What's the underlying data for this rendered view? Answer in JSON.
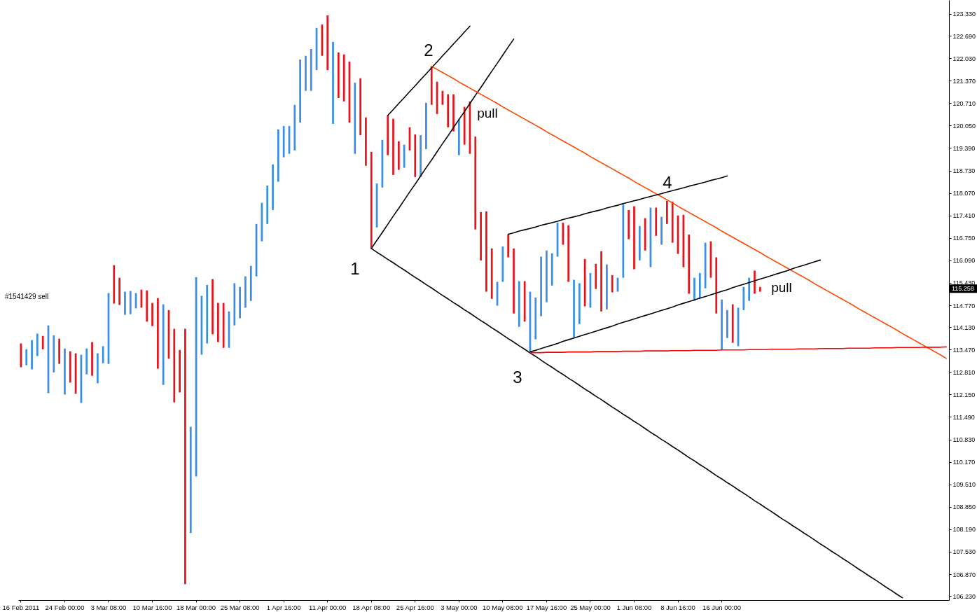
{
  "chart_data": {
    "type": "bar",
    "ylim": [
      106.11,
      123.74
    ],
    "yticks": [
      {
        "value": 123.33,
        "label": "123.330"
      },
      {
        "value": 122.69,
        "label": "122.690"
      },
      {
        "value": 122.03,
        "label": "122.030"
      },
      {
        "value": 121.37,
        "label": "121.370"
      },
      {
        "value": 120.71,
        "label": "120.710"
      },
      {
        "value": 120.05,
        "label": "120.050"
      },
      {
        "value": 119.39,
        "label": "119.390"
      },
      {
        "value": 118.73,
        "label": "118.730"
      },
      {
        "value": 118.07,
        "label": "118.070"
      },
      {
        "value": 117.41,
        "label": "117.410"
      },
      {
        "value": 116.75,
        "label": "116.750"
      },
      {
        "value": 116.09,
        "label": "116.090"
      },
      {
        "value": 115.43,
        "label": "115.430"
      },
      {
        "value": 114.77,
        "label": "114.770"
      },
      {
        "value": 114.13,
        "label": "114.130"
      },
      {
        "value": 113.47,
        "label": "113.470"
      },
      {
        "value": 112.81,
        "label": "112.810"
      },
      {
        "value": 112.15,
        "label": "112.150"
      },
      {
        "value": 111.49,
        "label": "111.490"
      },
      {
        "value": 110.83,
        "label": "110.830"
      },
      {
        "value": 110.17,
        "label": "110.170"
      },
      {
        "value": 109.51,
        "label": "109.510"
      },
      {
        "value": 108.85,
        "label": "108.850"
      },
      {
        "value": 108.19,
        "label": "108.190"
      },
      {
        "value": 107.53,
        "label": "107.530"
      },
      {
        "value": 106.87,
        "label": "106.870"
      },
      {
        "value": 106.23,
        "label": "106.230"
      }
    ],
    "categories": [
      "16 Feb 2011",
      null,
      null,
      null,
      null,
      null,
      null,
      null,
      "24 Feb 00:00",
      null,
      null,
      null,
      null,
      null,
      null,
      null,
      "3 Mar 08:00",
      null,
      null,
      null,
      null,
      null,
      null,
      null,
      "10 Mar 16:00",
      null,
      null,
      null,
      null,
      null,
      null,
      null,
      "18 Mar 00:00",
      null,
      null,
      null,
      null,
      null,
      null,
      null,
      "25 Mar 08:00",
      null,
      null,
      null,
      null,
      null,
      null,
      null,
      "1 Apr 16:00",
      null,
      null,
      null,
      null,
      null,
      null,
      null,
      "11 Apr 00:00",
      null,
      null,
      null,
      null,
      null,
      null,
      null,
      "18 Apr 08:00",
      null,
      null,
      null,
      null,
      null,
      null,
      null,
      "25 Apr 16:00",
      null,
      null,
      null,
      null,
      null,
      null,
      null,
      "3 May 00:00",
      null,
      null,
      null,
      null,
      null,
      null,
      null,
      "10 May 08:00",
      null,
      null,
      null,
      null,
      null,
      null,
      null,
      "17 May 16:00",
      null,
      null,
      null,
      null,
      null,
      null,
      null,
      "25 May 00:00",
      null,
      null,
      null,
      null,
      null,
      null,
      null,
      "1 Jun 08:00",
      null,
      null,
      null,
      null,
      null,
      null,
      null,
      "8 Jun 16:00",
      null,
      null,
      null,
      null,
      null,
      null,
      null,
      "16 Jun 00:00",
      null,
      null,
      null,
      null,
      null,
      null,
      null,
      null,
      null,
      null,
      null,
      null,
      null,
      null,
      null,
      null,
      null,
      null,
      null,
      null,
      null,
      null,
      null,
      null,
      null,
      null,
      null,
      null,
      null,
      null,
      null,
      null,
      null,
      null,
      null,
      null,
      null,
      null,
      null,
      null,
      null
    ],
    "series": [
      {
        "base": [
          112.95,
          113.01,
          112.89,
          113.28,
          113.48,
          112.19,
          112.8,
          113.05,
          112.15,
          112.5,
          112.17,
          111.9,
          112.74,
          112.7,
          112.48,
          113.07,
          113.05,
          114.82,
          114.78,
          114.49,
          114.51,
          114.68,
          114.7,
          114.29,
          114.16,
          112.91,
          112.43,
          113.2,
          111.92,
          112.21,
          106.58,
          108.08,
          109.74,
          113.32,
          113.65,
          113.92,
          113.69,
          113.52,
          113.52,
          114.18,
          114.39,
          114.7,
          114.9,
          115.62,
          116.65,
          117.16,
          117.57,
          118.4,
          119.12,
          119.22,
          119.32,
          120.14,
          121.07,
          121.07,
          121.68,
          122.1,
          121.68,
          120.1,
          120.86,
          120.76,
          120.14,
          119.22,
          119.77,
          118.87,
          116.44,
          117.06,
          118.23,
          119.18,
          118.6,
          118.75,
          118.81,
          119.32,
          118.54,
          118.54,
          119.36,
          120.66,
          120.39,
          120.66,
          120.0,
          119.88,
          119.18,
          119.49,
          119.22,
          117.0,
          116.09,
          115.17,
          114.96,
          114.76,
          115.46,
          116.18,
          114.53,
          114.14,
          114.29,
          113.4,
          113.77,
          114.45,
          114.86,
          115.35,
          116.2,
          116.55,
          115.46,
          113.83,
          114.22,
          114.74,
          114.7,
          115.25,
          114.59,
          114.65,
          115.15,
          115.17,
          115.58,
          116.71,
          115.83,
          116.09,
          116.38,
          115.89,
          116.81,
          116.55,
          117.16,
          116.61,
          116.28,
          115.89,
          115.11,
          114.9,
          114.96,
          115.27,
          115.58,
          114.53,
          113.46,
          113.81,
          113.67,
          113.57,
          114.63,
          114.9,
          115.11,
          115.17,
          null,
          null,
          null,
          null,
          null,
          null,
          null,
          null,
          null,
          null,
          null,
          null,
          null,
          null,
          null,
          null,
          null,
          null,
          null,
          null,
          null,
          null,
          null,
          null,
          null,
          null,
          null,
          null,
          null,
          null,
          null,
          null,
          null,
          null
        ],
        "values": [
          0.7,
          0.47,
          0.86,
          0.66,
          0.39,
          1.99,
          1.09,
          0.74,
          1.35,
          0.92,
          1.19,
          1.42,
          0.76,
          0.99,
          0.88,
          0.5,
          2.08,
          1.13,
          0.8,
          0.68,
          0.68,
          0.45,
          0.53,
          0.92,
          0.68,
          2.07,
          2.37,
          1.43,
          2.16,
          1.25,
          7.5,
          3.12,
          5.86,
          1.73,
          1.72,
          1.62,
          1.15,
          1.32,
          1.07,
          1.24,
          0.92,
          0.92,
          1.03,
          1.54,
          1.13,
          1.13,
          1.34,
          1.54,
          0.92,
          0.82,
          1.34,
          1.85,
          1.03,
          1.23,
          1.24,
          0.92,
          1.61,
          2.41,
          1.34,
          1.38,
          1.79,
          2.09,
          1.67,
          1.42,
          2.84,
          1.29,
          1.4,
          1.17,
          1.65,
          0.84,
          0.68,
          0.68,
          1.25,
          1.23,
          1.36,
          1.13,
          0.95,
          0.41,
          0.97,
          1.09,
          1.07,
          1.11,
          1.54,
          2.73,
          1.42,
          2.36,
          1.48,
          0.7,
          1.04,
          0.67,
          1.91,
          1.34,
          1.19,
          1.77,
          1.23,
          1.75,
          1.52,
          0.95,
          1.0,
          0.65,
          1.66,
          1.69,
          1.2,
          1.39,
          1.02,
          0.74,
          1.77,
          1.32,
          0.51,
          0.41,
          2.16,
          0.86,
          1.85,
          1.01,
          0.95,
          1.75,
          0.83,
          0.82,
          0.68,
          1.21,
          1.13,
          1.54,
          1.74,
          0.68,
          0.76,
          1.34,
          1.07,
          1.65,
          1.48,
          0.82,
          1.13,
          1.13,
          0.68,
          0.68,
          0.68,
          0.14,
          null,
          null,
          null,
          null,
          null,
          null,
          null,
          null,
          null,
          null,
          null,
          null,
          null,
          null,
          null,
          null,
          null,
          null,
          null,
          null,
          null,
          null,
          null,
          null,
          null,
          null,
          null,
          null,
          null,
          null,
          null,
          null,
          null,
          null
        ],
        "colors": [
          "#e8141b",
          "#3a8ee6",
          "#3a8ee6",
          "#3a8ee6",
          "#e8141b",
          "#3a8ee6",
          "#3a8ee6",
          "#e8141b",
          "#3a8ee6",
          "#e8141b",
          "#e8141b",
          "#3a8ee6",
          "#3a8ee6",
          "#e8141b",
          "#3a8ee6",
          "#3a8ee6",
          "#3a8ee6",
          "#e8141b",
          "#e8141b",
          "#3a8ee6",
          "#3a8ee6",
          "#3a8ee6",
          "#e8141b",
          "#e8141b",
          "#e8141b",
          "#e8141b",
          "#3a8ee6",
          "#e8141b",
          "#e8141b",
          "#e8141b",
          "#e8141b",
          "#3a8ee6",
          "#3a8ee6",
          "#3a8ee6",
          "#3a8ee6",
          "#e8141b",
          "#e8141b",
          "#e8141b",
          "#3a8ee6",
          "#3a8ee6",
          "#3a8ee6",
          "#3a8ee6",
          "#3a8ee6",
          "#3a8ee6",
          "#3a8ee6",
          "#3a8ee6",
          "#3a8ee6",
          "#3a8ee6",
          "#3a8ee6",
          "#3a8ee6",
          "#3a8ee6",
          "#3a8ee6",
          "#3a8ee6",
          "#3a8ee6",
          "#3a8ee6",
          "#e8141b",
          "#e8141b",
          "#3a8ee6",
          "#e8141b",
          "#e8141b",
          "#e8141b",
          "#3a8ee6",
          "#e8141b",
          "#e8141b",
          "#e8141b",
          "#3a8ee6",
          "#3a8ee6",
          "#e8141b",
          "#e8141b",
          "#e8141b",
          "#3a8ee6",
          "#e8141b",
          "#e8141b",
          "#3a8ee6",
          "#3a8ee6",
          "#e8141b",
          "#e8141b",
          "#e8141b",
          "#e8141b",
          "#e8141b",
          "#3a8ee6",
          "#e8141b",
          "#e8141b",
          "#e8141b",
          "#e8141b",
          "#e8141b",
          "#e8141b",
          "#3a8ee6",
          "#3a8ee6",
          "#e8141b",
          "#e8141b",
          "#3a8ee6",
          "#e8141b",
          "#3a8ee6",
          "#3a8ee6",
          "#3a8ee6",
          "#3a8ee6",
          "#3a8ee6",
          "#3a8ee6",
          "#e8141b",
          "#e8141b",
          "#3a8ee6",
          "#3a8ee6",
          "#e8141b",
          "#3a8ee6",
          "#e8141b",
          "#e8141b",
          "#3a8ee6",
          "#e8141b",
          "#3a8ee6",
          "#3a8ee6",
          "#e8141b",
          "#e8141b",
          "#3a8ee6",
          "#e8141b",
          "#3a8ee6",
          "#e8141b",
          "#3a8ee6",
          "#e8141b",
          "#e8141b",
          "#e8141b",
          "#e8141b",
          "#e8141b",
          "#3a8ee6",
          "#3a8ee6",
          "#3a8ee6",
          "#e8141b",
          "#e8141b",
          "#3a8ee6",
          "#3a8ee6",
          "#e8141b",
          "#3a8ee6",
          "#3a8ee6",
          "#3a8ee6",
          "#e8141b",
          "#e8141b",
          null,
          null,
          null,
          null,
          null,
          null,
          null,
          null,
          null,
          null,
          null,
          null,
          null,
          null,
          null,
          null,
          null,
          null,
          null,
          null,
          null,
          null,
          null,
          null,
          null,
          null,
          null,
          null,
          null,
          null,
          null,
          null,
          null,
          null
        ]
      },
      {
        "type": "line",
        "color": "#000000",
        "values": [
          null,
          null,
          null,
          null,
          null,
          null,
          null,
          null,
          null,
          null,
          null,
          null,
          null,
          null,
          null,
          null,
          null,
          null,
          null,
          null,
          null,
          null,
          null,
          null,
          null,
          null,
          null,
          null,
          null,
          null,
          null,
          null,
          null,
          null,
          null,
          null,
          null,
          null,
          null,
          null,
          null,
          null,
          null,
          null,
          null,
          null,
          null,
          null,
          null,
          null,
          null,
          null,
          null,
          null,
          null,
          null,
          null,
          null,
          null,
          null,
          null,
          null,
          null,
          null,
          116.44,
          116.33,
          116.23,
          116.12,
          116.02,
          115.91,
          115.81,
          115.7,
          115.59,
          115.49,
          115.38,
          115.28,
          115.17,
          115.06,
          114.96,
          114.85,
          114.75,
          114.64,
          114.54,
          114.43,
          114.32,
          114.22,
          114.11,
          114.01,
          113.9,
          113.79,
          113.69,
          113.58,
          113.48,
          113.37,
          113.27,
          113.16,
          113.05,
          112.95,
          112.84,
          112.74,
          112.63,
          112.53,
          112.42,
          112.31,
          112.21,
          112.1,
          112.0,
          111.89,
          111.78,
          111.68,
          111.57,
          111.47,
          111.36,
          111.26,
          111.15,
          111.04,
          110.94,
          110.83,
          110.73,
          110.62,
          110.52,
          110.41,
          110.3,
          110.2,
          110.09,
          109.99,
          109.88,
          109.77,
          109.67,
          109.56,
          109.46,
          109.35,
          109.25,
          109.14,
          109.03,
          108.93,
          108.82,
          108.72,
          108.61,
          108.5,
          108.4,
          108.29,
          108.19,
          108.08,
          107.98,
          107.87,
          107.76,
          107.66,
          107.55,
          107.45,
          107.34,
          107.24,
          107.13,
          107.02,
          106.92,
          106.81,
          106.71,
          106.6,
          106.49,
          106.39,
          106.28,
          106.18,
          null,
          null,
          null,
          null,
          null,
          null,
          null,
          null
        ]
      },
      {
        "type": "line",
        "color": "#000000",
        "values": [
          null,
          null,
          null,
          null,
          null,
          null,
          null,
          null,
          null,
          null,
          null,
          null,
          null,
          null,
          null,
          null,
          null,
          null,
          null,
          null,
          null,
          null,
          null,
          null,
          null,
          null,
          null,
          null,
          null,
          null,
          null,
          null,
          null,
          null,
          null,
          null,
          null,
          null,
          null,
          null,
          null,
          null,
          null,
          null,
          null,
          null,
          null,
          null,
          null,
          null,
          null,
          null,
          null,
          null,
          null,
          null,
          null,
          null,
          null,
          null,
          null,
          null,
          null,
          null,
          116.44,
          116.68,
          116.91,
          117.15,
          117.39,
          117.62,
          117.86,
          118.1,
          118.33,
          118.57,
          118.81,
          119.04,
          119.28,
          119.52,
          119.75,
          119.99,
          120.23,
          120.46,
          120.7,
          120.94,
          121.17,
          121.41,
          121.65,
          121.88,
          122.12,
          122.36,
          122.59,
          null,
          null,
          null,
          null,
          null,
          null,
          null,
          null,
          null,
          null,
          null,
          null,
          null,
          null,
          null,
          null,
          null,
          null,
          null,
          null,
          null,
          null,
          null,
          null,
          null,
          null,
          null,
          null,
          null,
          null,
          null,
          null,
          null,
          null,
          null,
          null,
          null,
          null,
          null,
          null,
          null,
          null,
          null,
          null,
          null,
          null,
          null,
          null,
          null,
          null,
          null,
          null,
          null,
          null,
          null,
          null,
          null,
          null,
          null,
          null,
          null,
          null,
          null,
          null,
          null,
          null,
          null,
          null,
          null,
          null,
          null,
          null,
          null,
          null,
          null,
          null,
          null,
          null,
          null
        ]
      },
      {
        "type": "line",
        "color": "#000000",
        "values": [
          null,
          null,
          null,
          null,
          null,
          null,
          null,
          null,
          null,
          null,
          null,
          null,
          null,
          null,
          null,
          null,
          null,
          null,
          null,
          null,
          null,
          null,
          null,
          null,
          null,
          null,
          null,
          null,
          null,
          null,
          null,
          null,
          null,
          null,
          null,
          null,
          null,
          null,
          null,
          null,
          null,
          null,
          null,
          null,
          null,
          null,
          null,
          null,
          null,
          null,
          null,
          null,
          null,
          null,
          null,
          null,
          null,
          null,
          null,
          null,
          null,
          null,
          null,
          null,
          null,
          null,
          null,
          120.35,
          120.52,
          120.7,
          120.87,
          121.05,
          121.22,
          121.4,
          121.57,
          121.75,
          121.92,
          122.1,
          122.27,
          122.45,
          122.62,
          122.8,
          122.97,
          null,
          null,
          null,
          null,
          null,
          null,
          null,
          null,
          null,
          null,
          null,
          null,
          null,
          null,
          null,
          null,
          null,
          null,
          null,
          null,
          null,
          null,
          null,
          null,
          null,
          null,
          null,
          null,
          null,
          null,
          null,
          null,
          null,
          null,
          null,
          null,
          null,
          null,
          null,
          null,
          null,
          null,
          null,
          null,
          null,
          null,
          null,
          null,
          null,
          null,
          null,
          null,
          null,
          null,
          null,
          null,
          null,
          null,
          null,
          null,
          null,
          null,
          null,
          null,
          null,
          null,
          null,
          null,
          null,
          null,
          null,
          null,
          null,
          null,
          null,
          null,
          null,
          null,
          null,
          null,
          null,
          null,
          null,
          null,
          null,
          null,
          null
        ]
      },
      {
        "type": "line",
        "color": "#ff4500",
        "values": [
          null,
          null,
          null,
          null,
          null,
          null,
          null,
          null,
          null,
          null,
          null,
          null,
          null,
          null,
          null,
          null,
          null,
          null,
          null,
          null,
          null,
          null,
          null,
          null,
          null,
          null,
          null,
          null,
          null,
          null,
          null,
          null,
          null,
          null,
          null,
          null,
          null,
          null,
          null,
          null,
          null,
          null,
          null,
          null,
          null,
          null,
          null,
          null,
          null,
          null,
          null,
          null,
          null,
          null,
          null,
          null,
          null,
          null,
          null,
          null,
          null,
          null,
          null,
          null,
          null,
          null,
          null,
          null,
          null,
          null,
          null,
          null,
          null,
          null,
          null,
          121.79,
          121.7,
          121.61,
          121.52,
          121.43,
          121.33,
          121.24,
          121.15,
          121.06,
          120.97,
          120.88,
          120.79,
          120.7,
          120.6,
          120.51,
          120.42,
          120.33,
          120.24,
          120.15,
          120.06,
          119.97,
          119.87,
          119.78,
          119.69,
          119.6,
          119.51,
          119.42,
          119.33,
          119.24,
          119.14,
          119.05,
          118.96,
          118.87,
          118.78,
          118.69,
          118.6,
          118.51,
          118.41,
          118.32,
          118.23,
          118.14,
          118.05,
          117.96,
          117.87,
          117.78,
          117.68,
          117.59,
          117.5,
          117.41,
          117.32,
          117.23,
          117.14,
          117.05,
          116.95,
          116.86,
          116.77,
          116.68,
          116.59,
          116.5,
          116.41,
          116.32,
          116.22,
          116.13,
          116.04,
          115.95,
          115.86,
          115.77,
          115.68,
          115.59,
          115.5,
          115.4,
          115.31,
          115.22,
          115.13,
          115.04,
          114.95,
          114.86,
          114.77,
          114.67,
          114.58,
          114.49,
          114.4,
          114.31,
          114.22,
          114.13,
          114.04,
          113.94,
          113.85,
          113.76,
          113.67,
          113.58,
          113.49,
          113.4,
          113.31,
          113.21
        ]
      },
      {
        "type": "line",
        "color": "#000000",
        "values": [
          null,
          null,
          null,
          null,
          null,
          null,
          null,
          null,
          null,
          null,
          null,
          null,
          null,
          null,
          null,
          null,
          null,
          null,
          null,
          null,
          null,
          null,
          null,
          null,
          null,
          null,
          null,
          null,
          null,
          null,
          null,
          null,
          null,
          null,
          null,
          null,
          null,
          null,
          null,
          null,
          null,
          null,
          null,
          null,
          null,
          null,
          null,
          null,
          null,
          null,
          null,
          null,
          null,
          null,
          null,
          null,
          null,
          null,
          null,
          null,
          null,
          null,
          null,
          null,
          null,
          null,
          null,
          null,
          null,
          null,
          null,
          null,
          null,
          null,
          null,
          null,
          null,
          null,
          null,
          null,
          null,
          null,
          null,
          null,
          null,
          null,
          null,
          null,
          null,
          116.86,
          116.9,
          116.95,
          116.99,
          117.03,
          117.07,
          117.12,
          117.16,
          117.2,
          117.24,
          117.29,
          117.33,
          117.37,
          117.41,
          117.46,
          117.5,
          117.54,
          117.58,
          117.63,
          117.67,
          117.71,
          117.76,
          117.8,
          117.84,
          117.88,
          117.93,
          117.97,
          118.01,
          118.05,
          118.1,
          118.14,
          118.18,
          118.22,
          118.27,
          118.31,
          118.35,
          118.39,
          118.44,
          118.48,
          118.52,
          118.57,
          null,
          null,
          null,
          null,
          null,
          null,
          null,
          null,
          null,
          null,
          null,
          null,
          null,
          null,
          null,
          null,
          null,
          null,
          null,
          null,
          null,
          null,
          null,
          null,
          null,
          null,
          null,
          null,
          null,
          null,
          null,
          null,
          null,
          null,
          null,
          null,
          null,
          null,
          null,
          null
        ]
      },
      {
        "type": "line",
        "color": "#000000",
        "values": [
          null,
          null,
          null,
          null,
          null,
          null,
          null,
          null,
          null,
          null,
          null,
          null,
          null,
          null,
          null,
          null,
          null,
          null,
          null,
          null,
          null,
          null,
          null,
          null,
          null,
          null,
          null,
          null,
          null,
          null,
          null,
          null,
          null,
          null,
          null,
          null,
          null,
          null,
          null,
          null,
          null,
          null,
          null,
          null,
          null,
          null,
          null,
          null,
          null,
          null,
          null,
          null,
          null,
          null,
          null,
          null,
          null,
          null,
          null,
          null,
          null,
          null,
          null,
          null,
          null,
          null,
          null,
          null,
          null,
          null,
          null,
          null,
          null,
          null,
          null,
          null,
          null,
          null,
          null,
          null,
          null,
          null,
          null,
          null,
          null,
          null,
          null,
          null,
          null,
          null,
          null,
          null,
          null,
          113.4,
          113.45,
          113.5,
          113.55,
          113.6,
          113.65,
          113.71,
          113.76,
          113.81,
          113.86,
          113.91,
          113.96,
          114.01,
          114.06,
          114.11,
          114.16,
          114.22,
          114.27,
          114.32,
          114.37,
          114.42,
          114.47,
          114.52,
          114.57,
          114.62,
          114.67,
          114.72,
          114.78,
          114.83,
          114.88,
          114.93,
          114.98,
          115.03,
          115.08,
          115.13,
          115.18,
          115.23,
          115.29,
          115.34,
          115.39,
          115.44,
          115.49,
          115.54,
          115.59,
          115.64,
          115.69,
          115.74,
          115.79,
          115.85,
          115.9,
          115.95,
          116.0,
          116.05,
          116.1,
          null,
          null,
          null,
          null,
          null,
          null,
          null,
          null,
          null,
          null,
          null,
          null,
          null,
          null,
          null,
          null,
          null,
          null,
          null,
          null,
          null,
          null,
          null
        ]
      },
      {
        "type": "line",
        "color": "#ff0000",
        "values": [
          null,
          null,
          null,
          null,
          null,
          null,
          null,
          null,
          null,
          null,
          null,
          null,
          null,
          null,
          null,
          null,
          null,
          null,
          null,
          null,
          null,
          null,
          null,
          null,
          null,
          null,
          null,
          null,
          null,
          null,
          null,
          null,
          null,
          null,
          null,
          null,
          null,
          null,
          null,
          null,
          null,
          null,
          null,
          null,
          null,
          null,
          null,
          null,
          null,
          null,
          null,
          null,
          null,
          null,
          null,
          null,
          null,
          null,
          null,
          null,
          null,
          null,
          null,
          null,
          null,
          null,
          null,
          null,
          null,
          null,
          null,
          null,
          null,
          null,
          null,
          null,
          null,
          null,
          null,
          null,
          null,
          null,
          null,
          null,
          null,
          null,
          null,
          null,
          null,
          null,
          null,
          null,
          null,
          113.38,
          113.38,
          113.38,
          113.39,
          113.39,
          113.39,
          113.39,
          113.4,
          113.4,
          113.4,
          113.4,
          113.4,
          113.41,
          113.41,
          113.41,
          113.41,
          113.41,
          113.42,
          113.42,
          113.42,
          113.42,
          113.43,
          113.43,
          113.43,
          113.43,
          113.43,
          113.44,
          113.44,
          113.44,
          113.44,
          113.45,
          113.45,
          113.45,
          113.45,
          113.45,
          113.46,
          113.46,
          113.46,
          113.46,
          113.46,
          113.47,
          113.47,
          113.47,
          113.47,
          113.48,
          113.48,
          113.48,
          113.48,
          113.48,
          113.49,
          113.49,
          113.49,
          113.49,
          113.5,
          113.5,
          113.5,
          113.5,
          113.5,
          113.51,
          113.51,
          113.51,
          113.51,
          113.51,
          113.52,
          113.52,
          113.52,
          113.52,
          113.53,
          113.53,
          113.53,
          113.53,
          113.53,
          113.54,
          113.54,
          113.54,
          113.54,
          113.55
        ]
      }
    ],
    "annotations": [
      "1",
      "2",
      "3",
      "4",
      "pull",
      "pull",
      "#1541429 sell",
      {
        "text": "115.258",
        "y": 115.258
      }
    ]
  }
}
